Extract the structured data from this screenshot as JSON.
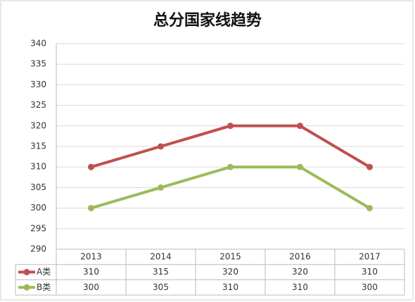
{
  "chart_data": {
    "type": "line",
    "title": "总分国家线趋势",
    "categories": [
      "2013",
      "2014",
      "2015",
      "2016",
      "2017"
    ],
    "series": [
      {
        "name": "A类",
        "color": "#c0504d",
        "values": [
          310,
          315,
          320,
          320,
          310
        ]
      },
      {
        "name": "B类",
        "color": "#9bbb59",
        "values": [
          300,
          305,
          310,
          310,
          300
        ]
      }
    ],
    "ylim": [
      290,
      340
    ],
    "yticks": [
      290,
      295,
      300,
      305,
      310,
      315,
      320,
      325,
      330,
      335,
      340
    ],
    "grid": true
  }
}
